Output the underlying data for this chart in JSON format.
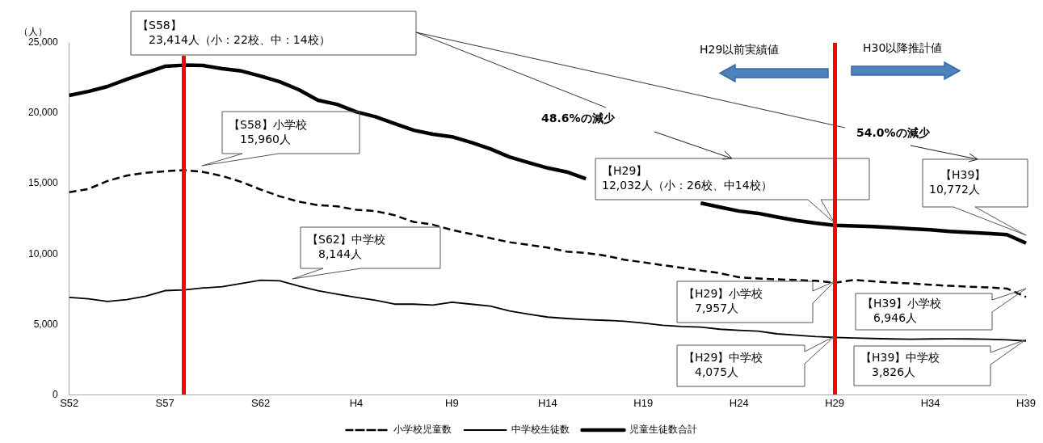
{
  "chart_data": {
    "type": "line",
    "ylabel": "（人）",
    "categories": [
      "S52",
      null,
      null,
      null,
      null,
      "S57",
      null,
      null,
      null,
      null,
      "S62",
      null,
      null,
      null,
      null,
      "H4",
      null,
      null,
      null,
      null,
      "H9",
      null,
      null,
      null,
      null,
      "H14",
      null,
      null,
      null,
      null,
      "H19",
      null,
      null,
      null,
      null,
      "H24",
      null,
      null,
      null,
      null,
      "H29",
      null,
      null,
      null,
      null,
      "H34",
      null,
      null,
      null,
      null,
      "H39"
    ],
    "ylim": [
      0,
      25000
    ],
    "yticks": [
      0,
      {
        "value": 5000,
        "label": "5,000"
      },
      {
        "value": 10000,
        "label": "10,000"
      },
      {
        "value": 15000,
        "label": "15,000"
      },
      {
        "value": 20000,
        "label": "20,000"
      },
      {
        "value": 25000,
        "label": "25,000"
      }
    ],
    "legend": "bottom",
    "marker": "none",
    "series": [
      {
        "name": "小学校児童数",
        "color": "#000000",
        "line_style": "dashed",
        "values": [
          14390,
          14620,
          15190,
          15570,
          15770,
          15880,
          15960,
          15830,
          15540,
          15120,
          14580,
          14100,
          13720,
          13470,
          13390,
          13140,
          13050,
          12760,
          12280,
          12090,
          11710,
          11420,
          11130,
          10840,
          10650,
          10460,
          10170,
          10080,
          9890,
          9600,
          9410,
          9210,
          9020,
          8830,
          8640,
          8350,
          8260,
          8200,
          8160,
          8100,
          7957,
          8160,
          8060,
          7970,
          7910,
          7820,
          7740,
          7680,
          7630,
          7550,
          6946
        ]
      },
      {
        "name": "中学校生徒数",
        "color": "#000000",
        "line_style": "solid",
        "values": [
          6920,
          6820,
          6630,
          6760,
          7010,
          7400,
          7450,
          7590,
          7680,
          7910,
          8144,
          8100,
          7720,
          7400,
          7150,
          6920,
          6720,
          6440,
          6440,
          6380,
          6570,
          6440,
          6300,
          5960,
          5730,
          5520,
          5420,
          5340,
          5290,
          5230,
          5100,
          4940,
          4850,
          4810,
          4660,
          4580,
          4520,
          4330,
          4240,
          4140,
          4075,
          4040,
          4000,
          3970,
          3950,
          3970,
          3980,
          3970,
          3950,
          3910,
          3826
        ]
      },
      {
        "name": "児童生徒数合計",
        "color": "#000000",
        "line_style": "solid",
        "values": [
          21270,
          21550,
          21900,
          22410,
          22870,
          23330,
          23414,
          23390,
          23160,
          23000,
          22640,
          22240,
          21670,
          20920,
          20630,
          20100,
          19750,
          19270,
          18790,
          18510,
          18330,
          17930,
          17470,
          16900,
          16500,
          16110,
          15830,
          15350,
          null,
          null,
          null,
          null,
          null,
          13620,
          13330,
          13050,
          12890,
          12630,
          12380,
          12190,
          12032,
          12000,
          11950,
          11880,
          11800,
          11720,
          11610,
          11530,
          11470,
          11380,
          10772
        ]
      }
    ],
    "annotations": [
      "【S58】\n　23,414人（小：22校、中：14校）",
      "【S58】小学校\n　15,960人",
      "【S62】中学校\n　8,144人",
      "【H29】\n12,032人（小：26校、中14校）",
      "【H29】小学校\n　7,957人",
      "【H29】中学校\n　4,075人",
      "　【H39】\n10,772人",
      "【H39】小学校\n　6,946人",
      "【H39】中学校\n　3,826人",
      "48.6%の減少",
      "54.0%の減少",
      "H29以前実績値",
      "H30以降推計値"
    ]
  }
}
